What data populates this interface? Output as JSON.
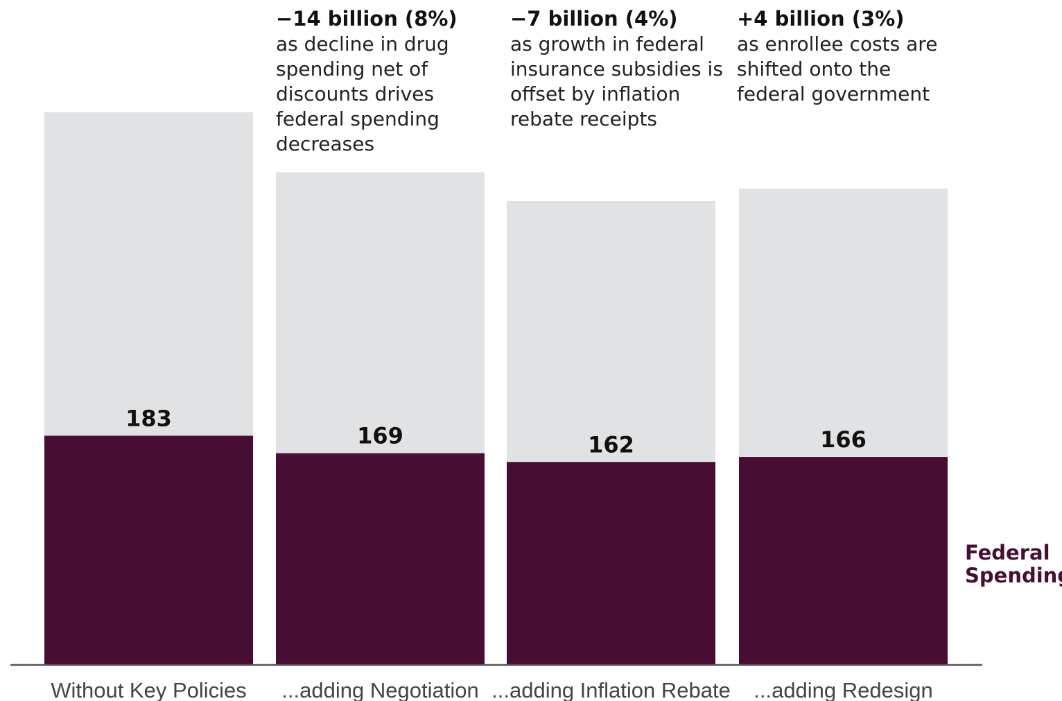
{
  "chart_data": {
    "type": "bar",
    "categories": [
      "Without Key Policies",
      "...adding Negotiation",
      "...adding Inflation Rebate",
      "...adding Redesign"
    ],
    "series": [
      {
        "name": "Federal Spending",
        "values": [
          183,
          169,
          162,
          166
        ]
      }
    ],
    "totals": [
      442,
      394,
      371,
      381
    ],
    "value_labels": [
      "183",
      "169",
      "162",
      "166"
    ],
    "annotations": [
      {
        "category_index": 1,
        "headline": "−14 billion (8%)",
        "lines": [
          "as decline in drug",
          "spending net of",
          "discounts drives",
          "federal spending",
          "decreases"
        ]
      },
      {
        "category_index": 2,
        "headline": "−7 billion (4%)",
        "lines": [
          "as growth in federal",
          "insurance subsidies is",
          "offset by inflation",
          "rebate receipts"
        ]
      },
      {
        "category_index": 3,
        "headline": "+4 billion (3%)",
        "lines": [
          "as enrollee costs are",
          "shifted onto the",
          "federal government"
        ]
      }
    ],
    "series_label_lines": [
      "Federal",
      "Spending"
    ],
    "ylim": [
      0,
      442
    ],
    "colors": {
      "federal": "#470d33",
      "total": "#e1e2e4"
    },
    "grid": false,
    "legend": "right-inline"
  }
}
